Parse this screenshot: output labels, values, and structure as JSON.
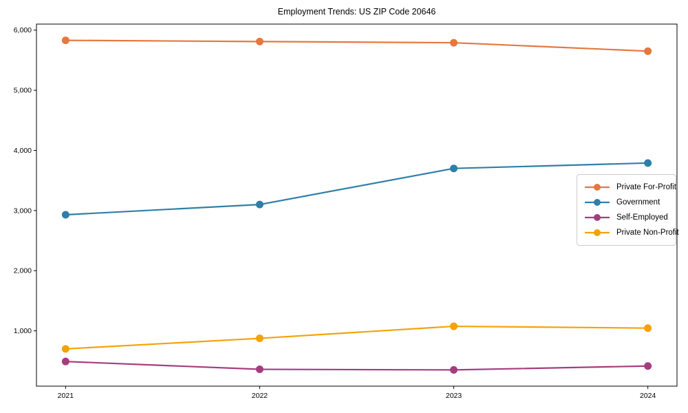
{
  "title": "Employment Trends: US ZIP Code 20646",
  "chart_data": {
    "type": "line",
    "categories": [
      "2021",
      "2022",
      "2023",
      "2024"
    ],
    "series": [
      {
        "name": "Private For-Profit",
        "color": "#e6773e",
        "values": [
          5830,
          5810,
          5790,
          5650
        ]
      },
      {
        "name": "Government",
        "color": "#2e7fa7",
        "values": [
          2930,
          3100,
          3700,
          3790
        ]
      },
      {
        "name": "Self-Employed",
        "color": "#a63c7f",
        "values": [
          490,
          360,
          350,
          415
        ]
      },
      {
        "name": "Private Non-Profit",
        "color": "#f4a208",
        "values": [
          700,
          875,
          1075,
          1045
        ]
      }
    ],
    "title": "Employment Trends: US ZIP Code 20646",
    "xlabel": "",
    "ylabel": "",
    "ylim": [
      80,
      6100
    ],
    "y_ticks": [
      1000,
      2000,
      3000,
      4000,
      5000,
      6000
    ],
    "y_tick_labels": [
      "1,000",
      "2,000",
      "3,000",
      "4,000",
      "5,000",
      "6,000"
    ],
    "grid": false,
    "legend_position": "center right",
    "axis_color": "#000000",
    "tick_label_color": "#000000"
  }
}
